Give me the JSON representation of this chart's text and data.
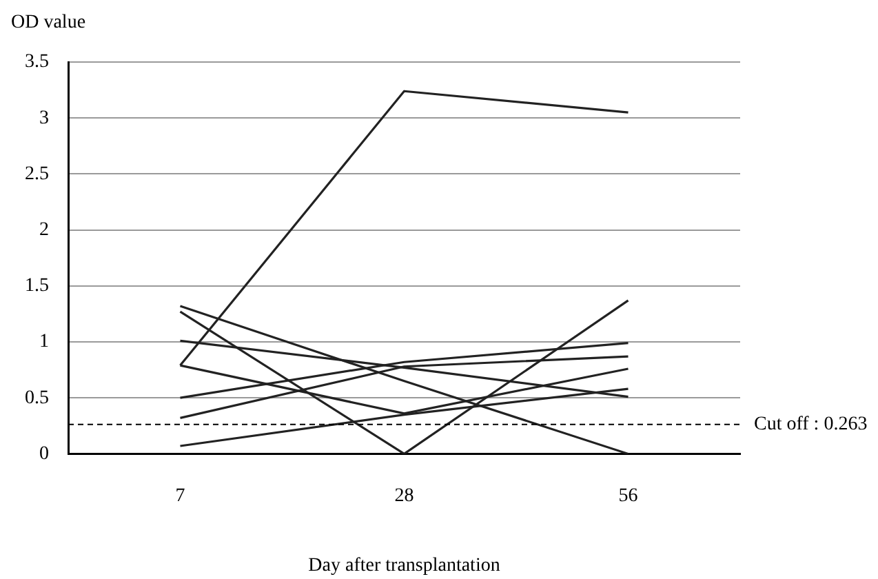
{
  "chart_data": {
    "type": "line",
    "xlabel": "Day after transplantation",
    "ylabel": "OD value",
    "categories": [
      "7",
      "28",
      "56"
    ],
    "series": [
      {
        "color": "#222222",
        "values": [
          1.32,
          0.65,
          0
        ]
      },
      {
        "color": "#222222",
        "values": [
          1.27,
          0,
          1.37
        ]
      },
      {
        "color": "#222222",
        "values": [
          1.01,
          0.77,
          0.51
        ]
      },
      {
        "color": "#222222",
        "values": [
          0.79,
          3.24,
          3.05
        ]
      },
      {
        "color": "#222222",
        "values": [
          0.79,
          0.36,
          0.76
        ]
      },
      {
        "color": "#222222",
        "values": [
          0.5,
          0.82,
          0.99
        ]
      },
      {
        "color": "#222222",
        "values": [
          0.32,
          0.78,
          0.87
        ]
      },
      {
        "color": "#222222",
        "values": [
          0.07,
          0.35,
          0.58
        ]
      }
    ],
    "ylim": [
      0,
      3.5
    ],
    "yticks": [
      0,
      0.5,
      1,
      1.5,
      2,
      2.5,
      3,
      3.5
    ],
    "grid": "y",
    "legend": false,
    "marker": "none",
    "line_style": "solid",
    "ref_lines": [
      {
        "axis": "y",
        "value": 0.263,
        "label": "Cut off : 0.263",
        "color": "#000000",
        "line_style": "dashed"
      }
    ]
  }
}
